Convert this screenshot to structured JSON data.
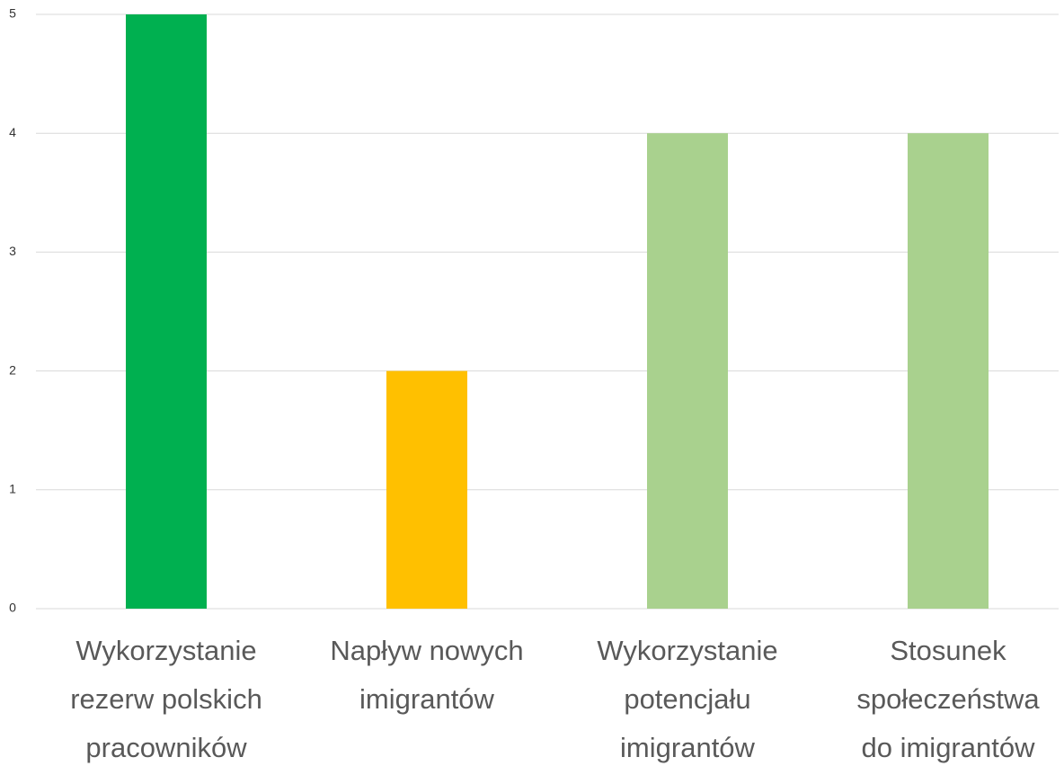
{
  "chart_data": {
    "type": "bar",
    "categories": [
      "Wykorzystanie rezerw polskich pracowników",
      "Napływ nowych imigrantów",
      "Wykorzystanie potencjału imigrantów",
      "Stosunek społeczeństwa do imigrantów"
    ],
    "values": [
      5,
      2,
      4,
      4
    ],
    "colors": [
      "#00b050",
      "#ffc000",
      "#a9d18e",
      "#a9d18e"
    ],
    "ylim": [
      0,
      5
    ],
    "yticks": [
      0,
      1,
      2,
      3,
      4,
      5
    ],
    "grid": true
  }
}
